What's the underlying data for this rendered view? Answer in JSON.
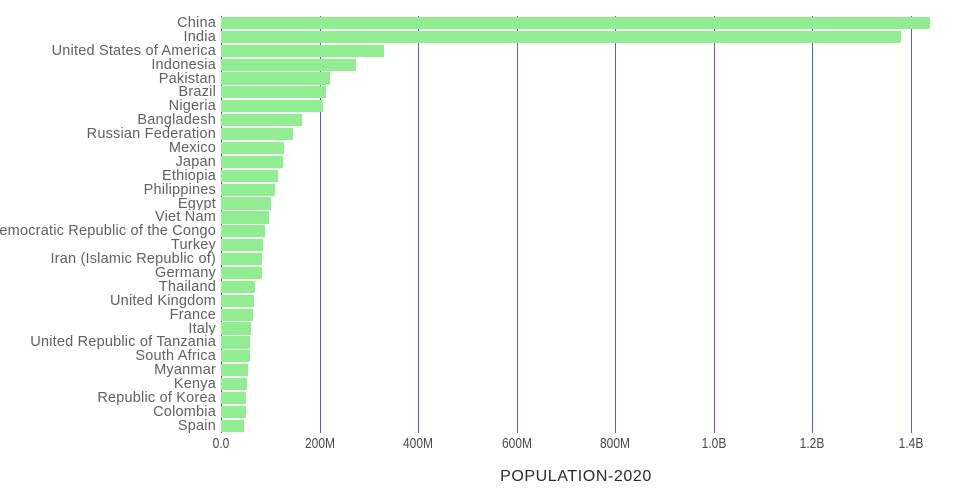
{
  "chart_data": {
    "type": "bar",
    "orientation": "horizontal",
    "title": "",
    "xlabel": "POPULATION-2020",
    "ylabel": "",
    "unit": "millions",
    "grid": true,
    "legend": false,
    "categories": [
      "China",
      "India",
      "United States of America",
      "Indonesia",
      "Pakistan",
      "Brazil",
      "Nigeria",
      "Bangladesh",
      "Russian Federation",
      "Mexico",
      "Japan",
      "Ethiopia",
      "Philippines",
      "Egypt",
      "Viet Nam",
      "Democratic Republic of the Congo",
      "Turkey",
      "Iran (Islamic Republic of)",
      "Germany",
      "Thailand",
      "United Kingdom",
      "France",
      "Italy",
      "United Republic of Tanzania",
      "South Africa",
      "Myanmar",
      "Kenya",
      "Republic of Korea",
      "Colombia",
      "Spain"
    ],
    "values": [
      1439.32,
      1380.0,
      331.0,
      273.52,
      220.89,
      212.56,
      206.14,
      164.69,
      145.93,
      128.93,
      126.48,
      114.96,
      109.58,
      102.33,
      97.34,
      89.56,
      84.34,
      83.99,
      83.78,
      69.8,
      67.89,
      65.27,
      60.46,
      59.73,
      59.31,
      54.41,
      53.77,
      51.27,
      50.88,
      46.75
    ],
    "x_ticks": [
      {
        "value": 0,
        "label": "0.0"
      },
      {
        "value": 200,
        "label": "200M"
      },
      {
        "value": 400,
        "label": "400M"
      },
      {
        "value": 600,
        "label": "600M"
      },
      {
        "value": 800,
        "label": "800M"
      },
      {
        "value": 1000,
        "label": "1.0B"
      },
      {
        "value": 1200,
        "label": "1.2B"
      },
      {
        "value": 1400,
        "label": "1.4B"
      }
    ],
    "xlim": [
      0,
      1500
    ],
    "colors": {
      "bar": "#90EE90",
      "grid": "#5a5af0",
      "axis": "#4646ee",
      "category_label": "#5f6063",
      "tick_label": "#4a4a4a",
      "title": "#2b2b2b"
    }
  }
}
